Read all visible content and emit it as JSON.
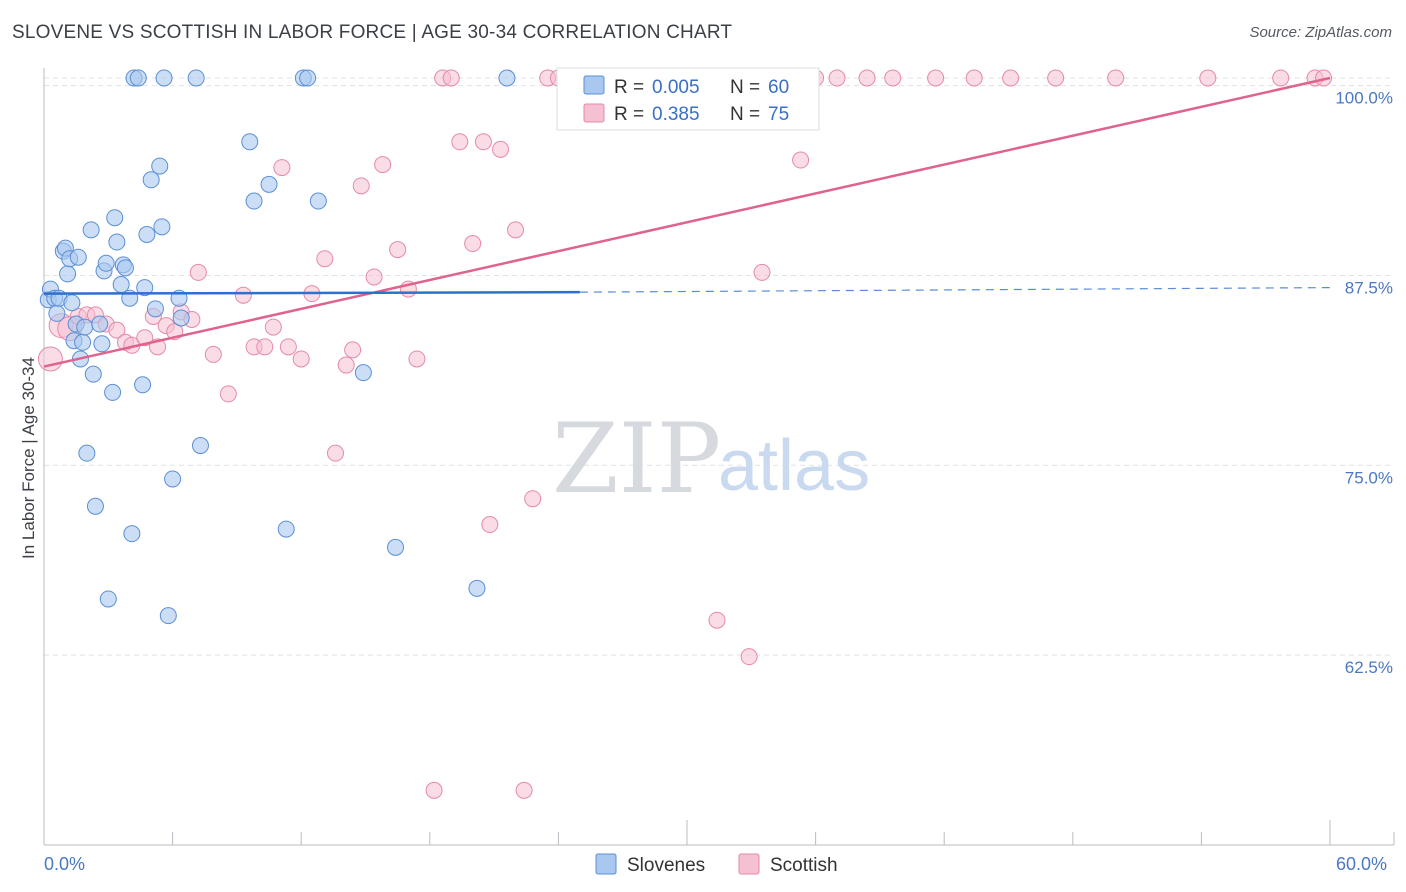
{
  "title": "SLOVENE VS SCOTTISH IN LABOR FORCE | AGE 30-34 CORRELATION CHART",
  "source": "Source: ZipAtlas.com",
  "watermark": {
    "zip": "ZIP",
    "atlas": "atlas"
  },
  "colors": {
    "slovenes_fill": "#a9c8ef",
    "slovenes_stroke": "#5b8fd6",
    "slovenes_line": "#2f6fcf",
    "scottish_fill": "#f5c0d2",
    "scottish_stroke": "#e58aa9",
    "scottish_line": "#e0628f",
    "grid": "#dfe2e6",
    "tick_label": "#4a78c2"
  },
  "legend": {
    "slovenes": {
      "r_label": "R =",
      "r_value": "0.005",
      "n_label": "N =",
      "n_value": "60"
    },
    "scottish": {
      "r_label": "R =",
      "r_value": "0.385",
      "n_label": "N =",
      "n_value": "75"
    }
  },
  "chart_data": {
    "type": "scatter",
    "title": "SLOVENE VS SCOTTISH IN LABOR FORCE | AGE 30-34 CORRELATION CHART",
    "xlabel": "",
    "ylabel": "In Labor Force | Age 30-34",
    "xlim": [
      0,
      60
    ],
    "ylim": [
      50,
      101.5
    ],
    "x_tick_labels": [
      "0.0%",
      "60.0%"
    ],
    "y_ticks": [
      62.5,
      75.0,
      87.5,
      100.0
    ],
    "y_tick_labels": [
      "62.5%",
      "75.0%",
      "87.5%",
      "100.0%"
    ],
    "legend_position": "top-center",
    "series": [
      {
        "name": "Slovenes",
        "trend": {
          "x": [
            0,
            25
          ],
          "y": [
            86.3,
            86.4
          ],
          "dashed_extension_to_x": 60,
          "dashed_end_y": 86.7
        },
        "points": [
          [
            0.2,
            85.9
          ],
          [
            0.3,
            86.6
          ],
          [
            0.5,
            86.0
          ],
          [
            0.6,
            85.0
          ],
          [
            0.7,
            86.0
          ],
          [
            0.9,
            89.1
          ],
          [
            1.0,
            89.3
          ],
          [
            1.1,
            87.6
          ],
          [
            1.2,
            88.6
          ],
          [
            1.3,
            85.7
          ],
          [
            1.4,
            83.2
          ],
          [
            1.5,
            84.3
          ],
          [
            1.6,
            88.7
          ],
          [
            1.7,
            82.0
          ],
          [
            1.8,
            83.1
          ],
          [
            1.9,
            84.1
          ],
          [
            2.0,
            75.8
          ],
          [
            2.2,
            90.5
          ],
          [
            2.3,
            81.0
          ],
          [
            2.4,
            72.3
          ],
          [
            2.6,
            84.3
          ],
          [
            2.7,
            83.0
          ],
          [
            2.8,
            87.8
          ],
          [
            2.9,
            88.3
          ],
          [
            3.0,
            66.2
          ],
          [
            3.2,
            79.8
          ],
          [
            3.3,
            91.3
          ],
          [
            3.4,
            89.7
          ],
          [
            3.6,
            86.9
          ],
          [
            3.7,
            88.2
          ],
          [
            3.8,
            88.0
          ],
          [
            4.0,
            86.0
          ],
          [
            4.1,
            70.5
          ],
          [
            4.2,
            100.5
          ],
          [
            4.4,
            100.5
          ],
          [
            4.6,
            80.3
          ],
          [
            4.7,
            86.7
          ],
          [
            4.8,
            90.2
          ],
          [
            5.0,
            93.8
          ],
          [
            5.2,
            85.3
          ],
          [
            5.4,
            94.7
          ],
          [
            5.5,
            90.7
          ],
          [
            5.6,
            100.5
          ],
          [
            5.8,
            65.1
          ],
          [
            6.0,
            74.1
          ],
          [
            6.3,
            86.0
          ],
          [
            6.4,
            84.7
          ],
          [
            7.1,
            100.5
          ],
          [
            7.3,
            76.3
          ],
          [
            9.6,
            96.3
          ],
          [
            9.8,
            92.4
          ],
          [
            10.5,
            93.5
          ],
          [
            11.3,
            70.8
          ],
          [
            12.1,
            100.5
          ],
          [
            12.3,
            100.5
          ],
          [
            12.8,
            92.4
          ],
          [
            14.9,
            81.1
          ],
          [
            16.4,
            69.6
          ],
          [
            20.2,
            66.9
          ],
          [
            21.6,
            100.5
          ]
        ]
      },
      {
        "name": "Scottish",
        "trend": {
          "x": [
            0,
            60
          ],
          "y": [
            81.5,
            100.5
          ]
        },
        "points": [
          [
            0.3,
            82.0
          ],
          [
            0.8,
            84.2
          ],
          [
            1.2,
            84.0
          ],
          [
            1.6,
            84.8
          ],
          [
            2.0,
            84.9
          ],
          [
            2.4,
            84.9
          ],
          [
            2.9,
            84.3
          ],
          [
            3.4,
            83.9
          ],
          [
            3.8,
            83.1
          ],
          [
            4.1,
            82.9
          ],
          [
            4.7,
            83.4
          ],
          [
            5.1,
            84.8
          ],
          [
            5.3,
            82.8
          ],
          [
            5.7,
            84.2
          ],
          [
            6.1,
            83.8
          ],
          [
            6.4,
            85.1
          ],
          [
            6.9,
            84.6
          ],
          [
            7.2,
            87.7
          ],
          [
            7.9,
            82.3
          ],
          [
            8.6,
            79.7
          ],
          [
            9.3,
            86.2
          ],
          [
            9.8,
            82.8
          ],
          [
            10.3,
            82.8
          ],
          [
            10.7,
            84.1
          ],
          [
            11.1,
            94.6
          ],
          [
            11.4,
            82.8
          ],
          [
            12.0,
            82.0
          ],
          [
            12.5,
            86.3
          ],
          [
            13.1,
            88.6
          ],
          [
            13.6,
            75.8
          ],
          [
            14.1,
            81.6
          ],
          [
            14.4,
            82.6
          ],
          [
            14.8,
            93.4
          ],
          [
            15.4,
            87.4
          ],
          [
            15.8,
            94.8
          ],
          [
            16.5,
            89.2
          ],
          [
            17.0,
            86.6
          ],
          [
            17.4,
            82.0
          ],
          [
            18.2,
            53.6
          ],
          [
            18.6,
            100.5
          ],
          [
            19.0,
            100.5
          ],
          [
            19.4,
            96.3
          ],
          [
            20.0,
            89.6
          ],
          [
            20.5,
            96.3
          ],
          [
            20.8,
            71.1
          ],
          [
            21.3,
            95.8
          ],
          [
            22.0,
            90.5
          ],
          [
            22.4,
            53.6
          ],
          [
            22.8,
            72.8
          ],
          [
            23.5,
            100.5
          ],
          [
            24.0,
            100.5
          ],
          [
            24.5,
            100.5
          ],
          [
            25.1,
            100.5
          ],
          [
            26.6,
            100.5
          ],
          [
            28.3,
            100.5
          ],
          [
            29.5,
            100.5
          ],
          [
            31.4,
            64.8
          ],
          [
            32.2,
            100.5
          ],
          [
            32.9,
            62.4
          ],
          [
            33.5,
            87.7
          ],
          [
            34.6,
            100.5
          ],
          [
            35.3,
            95.1
          ],
          [
            36.0,
            100.5
          ],
          [
            37.0,
            100.5
          ],
          [
            38.4,
            100.5
          ],
          [
            39.6,
            100.5
          ],
          [
            41.6,
            100.5
          ],
          [
            43.4,
            100.5
          ],
          [
            45.1,
            100.5
          ],
          [
            47.2,
            100.5
          ],
          [
            50.0,
            100.5
          ],
          [
            54.3,
            100.5
          ],
          [
            57.7,
            100.5
          ],
          [
            59.3,
            100.5
          ],
          [
            59.7,
            100.5
          ]
        ]
      }
    ],
    "bottom_legend": [
      "Slovenes",
      "Scottish"
    ]
  }
}
